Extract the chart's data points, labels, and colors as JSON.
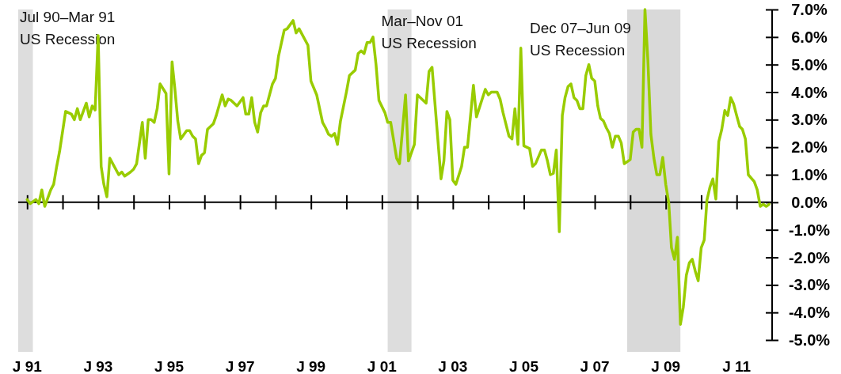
{
  "chart_data": {
    "type": "line",
    "x": [
      "1991-01",
      "1991-02",
      "1991-04",
      "1991-05",
      "1991-06",
      "1991-07",
      "1991-09",
      "1991-10",
      "1991-11",
      "1991-12",
      "1992-02",
      "1992-04",
      "1992-05",
      "1992-06",
      "1992-07",
      "1992-09",
      "1992-10",
      "1992-11",
      "1992-12",
      "1993-01",
      "1993-02",
      "1993-03",
      "1993-04",
      "1993-05",
      "1993-08",
      "1993-09",
      "1993-10",
      "1993-12",
      "1994-01",
      "1994-02",
      "1994-04",
      "1994-05",
      "1994-06",
      "1994-07",
      "1994-08",
      "1994-09",
      "1994-10",
      "1994-12",
      "1995-01",
      "1995-02",
      "1995-03",
      "1995-04",
      "1995-05",
      "1995-07",
      "1995-08",
      "1995-09",
      "1995-10",
      "1995-11",
      "1995-12",
      "1996-01",
      "1996-02",
      "1996-04",
      "1996-05",
      "1996-07",
      "1996-08",
      "1996-09",
      "1996-10",
      "1996-12",
      "1997-02",
      "1997-03",
      "1997-04",
      "1997-05",
      "1997-06",
      "1997-07",
      "1997-08",
      "1997-09",
      "1997-10",
      "1997-12",
      "1998-01",
      "1998-02",
      "1998-04",
      "1998-05",
      "1998-07",
      "1998-08",
      "1998-09",
      "1998-12",
      "1999-01",
      "1999-03",
      "1999-05",
      "1999-06",
      "1999-07",
      "1999-08",
      "1999-09",
      "1999-10",
      "1999-11",
      "2000-01",
      "2000-02",
      "2000-04",
      "2000-05",
      "2000-06",
      "2000-07",
      "2000-08",
      "2000-09",
      "2000-10",
      "2000-11",
      "2000-12",
      "2001-02",
      "2001-03",
      "2001-04",
      "2001-06",
      "2001-07",
      "2001-09",
      "2001-10",
      "2001-12",
      "2002-01",
      "2002-04",
      "2002-05",
      "2002-06",
      "2002-09",
      "2002-10",
      "2002-11",
      "2002-12",
      "2003-01",
      "2003-02",
      "2003-04",
      "2003-05",
      "2003-06",
      "2003-08",
      "2003-09",
      "2003-12",
      "2004-01",
      "2004-02",
      "2004-04",
      "2004-05",
      "2004-06",
      "2004-08",
      "2004-09",
      "2004-10",
      "2004-11",
      "2004-12",
      "2005-01",
      "2005-03",
      "2005-04",
      "2005-05",
      "2005-07",
      "2005-08",
      "2005-09",
      "2005-10",
      "2005-11",
      "2005-12",
      "2006-01",
      "2006-02",
      "2006-03",
      "2006-04",
      "2006-05",
      "2006-06",
      "2006-07",
      "2006-08",
      "2006-09",
      "2006-10",
      "2006-11",
      "2006-12",
      "2007-01",
      "2007-02",
      "2007-03",
      "2007-04",
      "2007-05",
      "2007-06",
      "2007-07",
      "2007-08",
      "2007-09",
      "2007-10",
      "2007-11",
      "2008-01",
      "2008-02",
      "2008-03",
      "2008-04",
      "2008-05",
      "2008-06",
      "2008-07",
      "2008-08",
      "2008-09",
      "2008-10",
      "2008-11",
      "2008-12",
      "2009-01",
      "2009-02",
      "2009-03",
      "2009-04",
      "2009-05",
      "2009-06",
      "2009-07",
      "2009-08",
      "2009-09",
      "2009-10",
      "2009-11",
      "2009-12",
      "2010-01",
      "2010-02",
      "2010-03",
      "2010-04",
      "2010-05",
      "2010-06",
      "2010-07",
      "2010-08",
      "2010-09",
      "2010-10",
      "2010-11",
      "2010-12",
      "2011-01",
      "2011-02",
      "2011-03",
      "2011-04",
      "2011-05",
      "2011-07",
      "2011-08",
      "2011-09",
      "2011-10",
      "2011-11",
      "2011-12"
    ],
    "series": [
      {
        "color": "#99cc00",
        "values": [
          0.1,
          -0.05,
          0.1,
          -0.05,
          0.45,
          -0.15,
          0.45,
          0.65,
          1.3,
          1.85,
          3.3,
          3.2,
          3.0,
          3.4,
          3.0,
          3.6,
          3.1,
          3.5,
          3.35,
          6.05,
          1.3,
          0.65,
          0.2,
          1.6,
          1.0,
          1.1,
          0.95,
          1.1,
          1.2,
          1.4,
          2.9,
          1.6,
          3.0,
          3.0,
          2.9,
          3.4,
          4.3,
          3.95,
          1.03,
          5.1,
          4.15,
          2.95,
          2.3,
          2.6,
          2.6,
          2.4,
          2.3,
          1.4,
          1.7,
          1.8,
          2.65,
          2.85,
          3.15,
          3.9,
          3.5,
          3.75,
          3.7,
          3.5,
          3.8,
          3.2,
          3.2,
          3.8,
          2.9,
          2.55,
          3.25,
          3.5,
          3.5,
          4.3,
          4.5,
          5.3,
          6.25,
          6.3,
          6.6,
          6.15,
          6.3,
          5.7,
          4.4,
          3.9,
          2.9,
          2.7,
          2.47,
          2.4,
          2.5,
          2.1,
          2.95,
          4.0,
          4.6,
          4.8,
          5.4,
          5.5,
          5.4,
          5.8,
          5.8,
          6.0,
          5.0,
          3.7,
          3.25,
          2.9,
          2.9,
          1.6,
          1.4,
          3.9,
          1.5,
          2.1,
          3.9,
          3.6,
          4.75,
          4.9,
          0.85,
          1.5,
          3.3,
          3.0,
          0.8,
          0.65,
          1.3,
          2.0,
          2.0,
          4.25,
          3.1,
          4.1,
          3.9,
          4.0,
          4.0,
          3.75,
          3.25,
          2.4,
          2.3,
          3.4,
          2.1,
          5.6,
          2.05,
          1.95,
          1.3,
          1.4,
          1.9,
          1.9,
          1.5,
          1.0,
          1.05,
          1.9,
          -1.07,
          3.15,
          3.8,
          4.2,
          4.3,
          3.8,
          3.7,
          3.4,
          3.4,
          4.6,
          5.0,
          4.5,
          4.4,
          3.5,
          3.05,
          2.95,
          2.7,
          2.5,
          2.0,
          2.4,
          2.4,
          2.15,
          1.4,
          1.55,
          2.55,
          2.65,
          2.65,
          2.0,
          7.0,
          5.15,
          2.47,
          1.6,
          1.0,
          1.0,
          1.63,
          0.65,
          -0.02,
          -1.65,
          -2.07,
          -1.27,
          -4.43,
          -3.8,
          -2.65,
          -2.2,
          -2.07,
          -2.5,
          -2.85,
          -1.65,
          -1.37,
          0.08,
          0.55,
          0.85,
          0.12,
          2.2,
          2.65,
          3.33,
          3.15,
          3.8,
          3.57,
          3.15,
          2.75,
          2.65,
          2.3,
          1.0,
          0.75,
          0.45,
          -0.15,
          -0.07,
          -0.15,
          -0.07
        ]
      }
    ],
    "xlim": [
      "1990-10",
      "2012-01"
    ],
    "xticks": [
      {
        "value": "1991",
        "label": "J 91"
      },
      {
        "value": "1992",
        "label": null
      },
      {
        "value": "1993",
        "label": "J 93"
      },
      {
        "value": "1994",
        "label": null
      },
      {
        "value": "1995",
        "label": "J 95"
      },
      {
        "value": "1996",
        "label": null
      },
      {
        "value": "1997",
        "label": "J 97"
      },
      {
        "value": "1998",
        "label": null
      },
      {
        "value": "1999",
        "label": "J 99"
      },
      {
        "value": "2000",
        "label": null
      },
      {
        "value": "2001",
        "label": "J 01"
      },
      {
        "value": "2002",
        "label": null
      },
      {
        "value": "2003",
        "label": "J 03"
      },
      {
        "value": "2004",
        "label": null
      },
      {
        "value": "2005",
        "label": "J 05"
      },
      {
        "value": "2006",
        "label": null
      },
      {
        "value": "2007",
        "label": "J 07"
      },
      {
        "value": "2008",
        "label": null
      },
      {
        "value": "2009",
        "label": "J 09"
      },
      {
        "value": "2010",
        "label": null
      },
      {
        "value": "2011",
        "label": "J 11"
      }
    ],
    "ylim": [
      -5,
      7
    ],
    "yticks": [
      {
        "value": 7,
        "label": "7.0%"
      },
      {
        "value": 6,
        "label": "6.0%"
      },
      {
        "value": 5,
        "label": "5.0%"
      },
      {
        "value": 4,
        "label": "4.0%"
      },
      {
        "value": 3,
        "label": "3.0%"
      },
      {
        "value": 2,
        "label": "2.0%"
      },
      {
        "value": 1,
        "label": "1.0%"
      },
      {
        "value": 0,
        "label": "0.0%"
      },
      {
        "value": -1,
        "label": "-1.0%"
      },
      {
        "value": -2,
        "label": "-2.0%"
      },
      {
        "value": -3,
        "label": "-3.0%"
      },
      {
        "value": -4,
        "label": "-4.0%"
      },
      {
        "value": -5,
        "label": "-5.0%"
      }
    ],
    "bands": [
      {
        "axis": "x",
        "from": "1990-10",
        "to": "1991-03",
        "label": "Jul 90–Mar 91\nUS Recession",
        "color": "#dddddd"
      },
      {
        "axis": "x",
        "from": "2001-03",
        "to": "2001-11",
        "label": "Mar–Nov 01\nUS Recession",
        "color": "#dddddd"
      },
      {
        "axis": "x",
        "from": "2007-12",
        "to": "2009-06",
        "label": "Dec 07–Jun 09\nUS Recession",
        "color": "#d9d9d9"
      }
    ],
    "marker": "none",
    "line_style": "solid"
  }
}
